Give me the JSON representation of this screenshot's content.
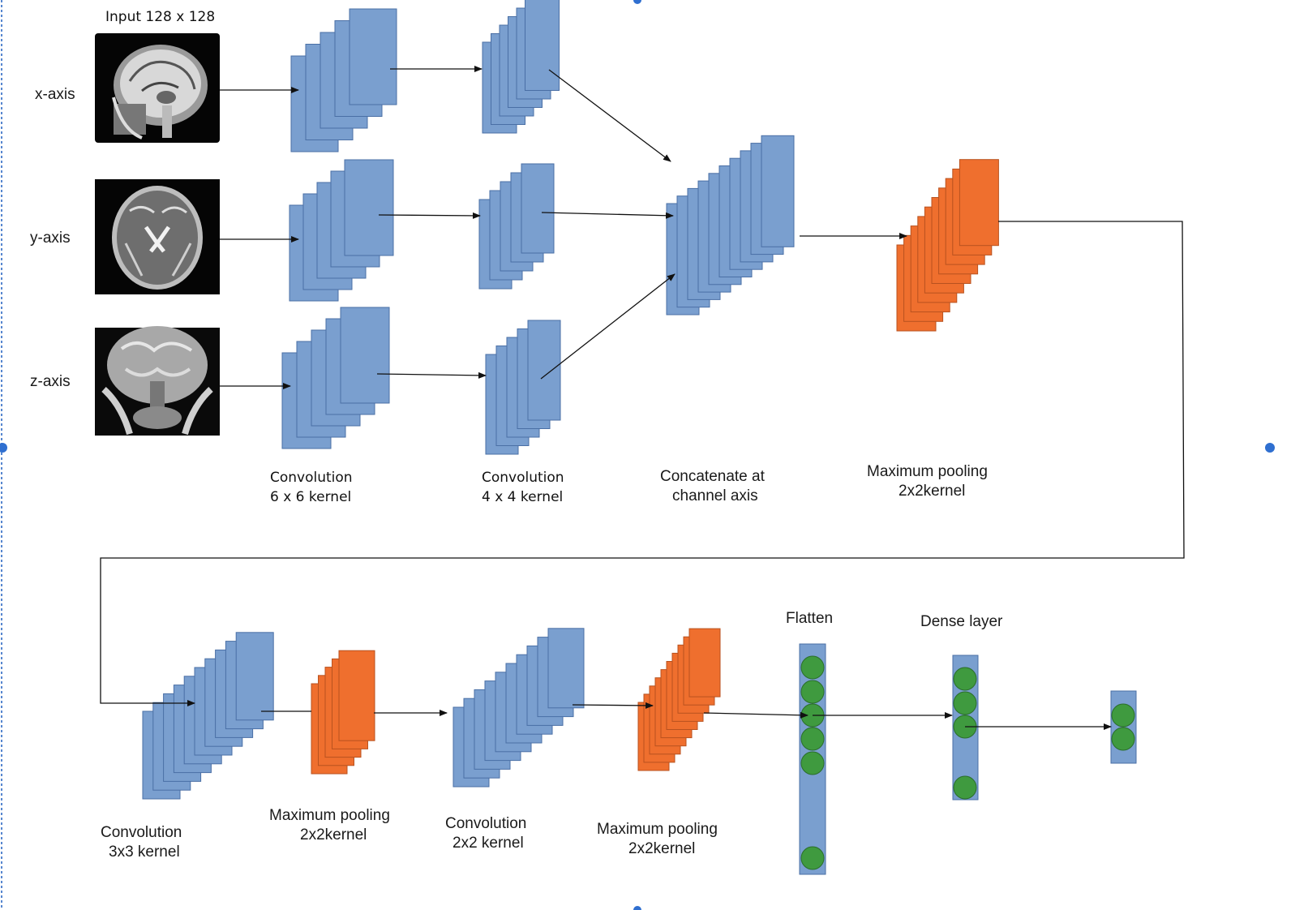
{
  "colors": {
    "conv": "#7a9fcf",
    "conv_stroke": "#4a6fa5",
    "pool": "#ef6f2e",
    "pool_stroke": "#b8521f",
    "neuron": "#3f9a3f",
    "neuron_stroke": "#2b6e2b",
    "arrow": "#111111",
    "frame": "#1f5fbf"
  },
  "inputs": {
    "title": "Input 128 x 128",
    "x_label": "x-axis",
    "y_label": "y-axis",
    "z_label": "z-axis"
  },
  "stage_labels": {
    "conv1_l1": "Convolution",
    "conv1_l2": "6 x 6 kernel",
    "conv2_l1": "Convolution",
    "conv2_l2": "4 x 4 kernel",
    "concat_l1": "Concatenate at",
    "concat_l2": "channel axis",
    "pool1_l1": "Maximum pooling",
    "pool1_l2": "2x2kernel",
    "conv3_l1": "Convolution",
    "conv3_l2": "3x3 kernel",
    "pool2_l1": "Maximum pooling",
    "pool2_l2": "2x2kernel",
    "conv4_l1": "Convolution",
    "conv4_l2": "2x2 kernel",
    "pool3_l1": "Maximum pooling",
    "pool3_l2": "2x2kernel",
    "flatten": "Flatten",
    "dense": "Dense layer"
  }
}
